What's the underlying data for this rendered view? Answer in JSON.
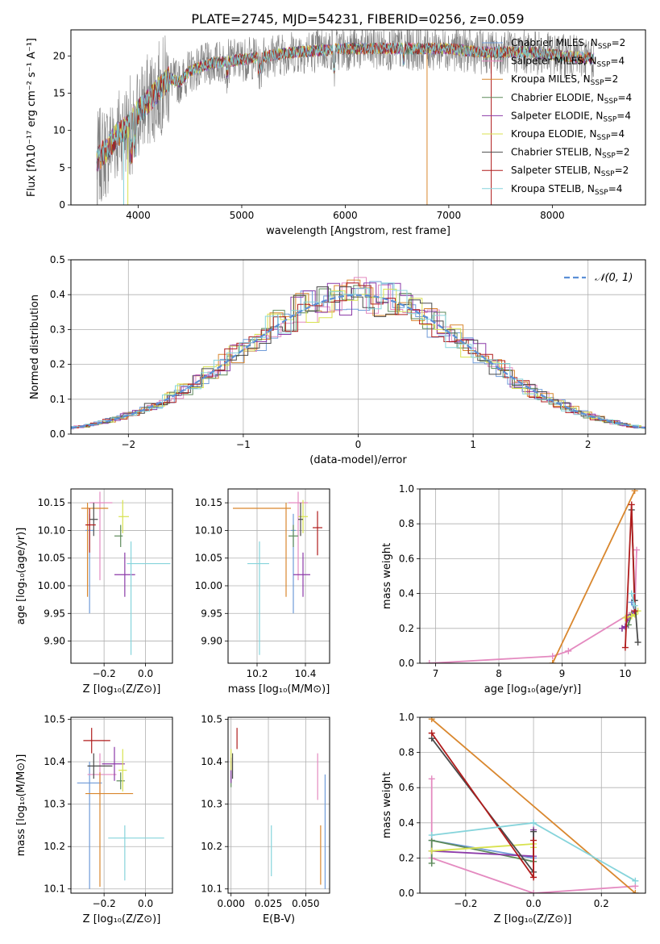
{
  "figure": {
    "title": "PLATE=2745, MJD=54231, FIBERID=0256, z=0.059"
  },
  "legend_colors": [
    "#6f9bd8",
    "#e48ac0",
    "#d9872e",
    "#5d8a5a",
    "#8b3aa8",
    "#d8e24f",
    "#4a4a4a",
    "#b01c1c",
    "#86d4db"
  ],
  "chart_data": [
    {
      "id": "spectrum",
      "type": "line",
      "xlabel": "wavelength [Angstrom, rest frame]",
      "ylabel": "Flux [fλ10⁻¹⁷ erg cm⁻² s⁻¹ A⁻¹]",
      "xlim": [
        3350,
        8900
      ],
      "ylim": [
        0,
        23.5
      ],
      "xticks": [
        4000,
        5000,
        6000,
        7000,
        8000
      ],
      "yticks": [
        0,
        5,
        10,
        15,
        20
      ],
      "legend_position": "right",
      "continuum": {
        "x": [
          3600,
          3700,
          3800,
          3900,
          4000,
          4100,
          4200,
          4300,
          4400,
          4500,
          4700,
          5000,
          5500,
          6000,
          6500,
          7000,
          7300,
          7500,
          7800,
          8100,
          8500
        ],
        "y": [
          6,
          7.5,
          9.5,
          10.5,
          12.5,
          14,
          15.5,
          17,
          16.5,
          18,
          19,
          19.5,
          20.5,
          21,
          21,
          21,
          20.5,
          20.5,
          20.5,
          20,
          19.5
        ]
      },
      "series": [
        {
          "name": "Chabrier MILES, N_SSP=2"
        },
        {
          "name": "Salpeter MILES, N_SSP=4"
        },
        {
          "name": "Kroupa MILES, N_SSP=2"
        },
        {
          "name": "Chabrier ELODIE, N_SSP=4"
        },
        {
          "name": "Salpeter ELODIE, N_SSP=4"
        },
        {
          "name": "Kroupa ELODIE, N_SSP=4"
        },
        {
          "name": "Chabrier STELIB, N_SSP=2"
        },
        {
          "name": "Salpeter STELIB, N_SSP=2"
        },
        {
          "name": "Kroupa STELIB, N_SSP=4"
        }
      ]
    },
    {
      "id": "residuals",
      "type": "histogram",
      "xlabel": "(data-model)/error",
      "ylabel": "Normed distribution",
      "xlim": [
        -2.5,
        2.5
      ],
      "ylim": [
        0,
        0.5
      ],
      "xticks": [
        -2,
        -1,
        0,
        1,
        2
      ],
      "yticks": [
        0.0,
        0.1,
        0.2,
        0.3,
        0.4,
        0.5
      ],
      "grid": true,
      "legend": "𝒩(0, 1)",
      "legend_position": "top-right",
      "reference": {
        "name": "N(0,1)",
        "mean": 0,
        "sigma": 1
      }
    },
    {
      "id": "age_vs_Z",
      "type": "errorbar",
      "xlabel": "Z [log₁₀(Z/Z⊙)]",
      "ylabel": "age  [log₁₀(age/yr)]",
      "xlim": [
        -0.36,
        0.13
      ],
      "ylim": [
        9.86,
        10.175
      ],
      "xticks": [
        -0.2,
        0.0
      ],
      "yticks": [
        9.9,
        9.95,
        10.0,
        10.05,
        10.1,
        10.15
      ],
      "grid": true,
      "points": [
        {
          "x": -0.27,
          "xerr": [
            0.02,
            0.02
          ],
          "y": 10.1,
          "yerr": [
            0.15,
            0.03
          ]
        },
        {
          "x": -0.22,
          "xerr": [
            0.05,
            0.06
          ],
          "y": 10.15,
          "yerr": [
            0.14,
            0.02
          ]
        },
        {
          "x": -0.28,
          "xerr": [
            0.03,
            0.1
          ],
          "y": 10.14,
          "yerr": [
            0.16,
            0.01
          ]
        },
        {
          "x": -0.12,
          "xerr": [
            0.03,
            0.01
          ],
          "y": 10.09,
          "yerr": [
            0.02,
            0.02
          ]
        },
        {
          "x": -0.1,
          "xerr": [
            0.05,
            0.05
          ],
          "y": 10.02,
          "yerr": [
            0.04,
            0.04
          ]
        },
        {
          "x": -0.11,
          "xerr": [
            0.02,
            0.03
          ],
          "y": 10.125,
          "yerr": [
            0.03,
            0.03
          ]
        },
        {
          "x": -0.25,
          "xerr": [
            0.02,
            0.02
          ],
          "y": 10.12,
          "yerr": [
            0.03,
            0.03
          ]
        },
        {
          "x": -0.27,
          "xerr": [
            0.02,
            0.03
          ],
          "y": 10.11,
          "yerr": [
            0.05,
            0.03
          ]
        },
        {
          "x": -0.07,
          "xerr": [
            0.02,
            0.19
          ],
          "y": 10.04,
          "yerr": [
            0.165,
            0.04
          ]
        }
      ]
    },
    {
      "id": "age_vs_mass",
      "type": "errorbar",
      "xlabel": "mass [log₁₀(M/M⊙)]",
      "ylabel": "",
      "xlim": [
        10.08,
        10.5
      ],
      "ylim": [
        9.86,
        10.175
      ],
      "xticks": [
        10.2,
        10.4
      ],
      "yticks": [
        9.9,
        9.95,
        10.0,
        10.05,
        10.1,
        10.15
      ],
      "grid": true,
      "points": [
        {
          "x": 10.35,
          "xerr": [
            0.01,
            0.01
          ],
          "y": 10.1,
          "yerr": [
            0.15,
            0.03
          ]
        },
        {
          "x": 10.37,
          "xerr": [
            0.04,
            0.04
          ],
          "y": 10.15,
          "yerr": [
            0.14,
            0.02
          ]
        },
        {
          "x": 10.32,
          "xerr": [
            0.22,
            0.02
          ],
          "y": 10.14,
          "yerr": [
            0.16,
            0.01
          ]
        },
        {
          "x": 10.35,
          "xerr": [
            0.02,
            0.02
          ],
          "y": 10.09,
          "yerr": [
            0.02,
            0.02
          ]
        },
        {
          "x": 10.39,
          "xerr": [
            0.04,
            0.03
          ],
          "y": 10.02,
          "yerr": [
            0.04,
            0.04
          ]
        },
        {
          "x": 10.39,
          "xerr": [
            0.02,
            0.02
          ],
          "y": 10.125,
          "yerr": [
            0.03,
            0.03
          ]
        },
        {
          "x": 10.38,
          "xerr": [
            0.01,
            0.01
          ],
          "y": 10.12,
          "yerr": [
            0.03,
            0.03
          ]
        },
        {
          "x": 10.45,
          "xerr": [
            0.02,
            0.02
          ],
          "y": 10.105,
          "yerr": [
            0.05,
            0.03
          ]
        },
        {
          "x": 10.21,
          "xerr": [
            0.05,
            0.04
          ],
          "y": 10.04,
          "yerr": [
            0.165,
            0.04
          ]
        }
      ]
    },
    {
      "id": "weight_vs_age",
      "type": "line",
      "xlabel": "age  [log₁₀(age/yr)]",
      "ylabel": "mass weight",
      "xlim": [
        6.75,
        10.32
      ],
      "ylim": [
        0,
        1.0
      ],
      "xticks": [
        7,
        8,
        9,
        10
      ],
      "yticks": [
        0.0,
        0.2,
        0.4,
        0.6,
        0.8,
        1.0
      ],
      "grid": true,
      "series": [
        {
          "x": [
            10.1,
            10.15
          ],
          "y": [
            0.35,
            0.3
          ]
        },
        {
          "x": [
            6.9,
            8.85,
            9.1,
            10.1,
            10.15,
            10.18
          ],
          "y": [
            0.0,
            0.04,
            0.07,
            0.29,
            0.3,
            0.65
          ]
        },
        {
          "x": [
            8.85,
            10.15
          ],
          "y": [
            0.0,
            0.99
          ]
        },
        {
          "x": [
            9.95,
            10.05,
            10.1,
            10.15
          ],
          "y": [
            0.2,
            0.22,
            0.28,
            0.3
          ]
        },
        {
          "x": [
            9.95,
            10.0,
            10.05,
            10.15
          ],
          "y": [
            0.2,
            0.21,
            0.26,
            0.3
          ]
        },
        {
          "x": [
            10.0,
            10.1,
            10.15,
            10.2
          ],
          "y": [
            0.26,
            0.27,
            0.28,
            0.3
          ]
        },
        {
          "x": [
            10.1,
            10.15,
            10.2
          ],
          "y": [
            0.88,
            0.36,
            0.12
          ]
        },
        {
          "x": [
            10.0,
            10.1,
            10.15
          ],
          "y": [
            0.09,
            0.91,
            0.3
          ]
        },
        {
          "x": [
            10.1,
            10.15
          ],
          "y": [
            0.4,
            0.33
          ]
        }
      ]
    },
    {
      "id": "mass_vs_Z",
      "type": "errorbar",
      "xlabel": "Z [log₁₀(Z/Z⊙)]",
      "ylabel": "mass [log₁₀(M/M⊙)]",
      "xlim": [
        -0.36,
        0.13
      ],
      "ylim": [
        10.09,
        10.505
      ],
      "xticks": [
        -0.2,
        0.0
      ],
      "yticks": [
        10.1,
        10.2,
        10.3,
        10.4,
        10.5
      ],
      "grid": true,
      "points": [
        {
          "x": -0.27,
          "xerr": [
            0.06,
            0.06
          ],
          "y": 10.35,
          "yerr": [
            0.25,
            0.05
          ]
        },
        {
          "x": -0.22,
          "xerr": [
            0.06,
            0.08
          ],
          "y": 10.37,
          "yerr": [
            0.05,
            0.05
          ]
        },
        {
          "x": -0.22,
          "xerr": [
            0.07,
            0.16
          ],
          "y": 10.325,
          "yerr": [
            0.22,
            0.05
          ]
        },
        {
          "x": -0.12,
          "xerr": [
            0.02,
            0.02
          ],
          "y": 10.355,
          "yerr": [
            0.02,
            0.02
          ]
        },
        {
          "x": -0.15,
          "xerr": [
            0.06,
            0.05
          ],
          "y": 10.395,
          "yerr": [
            0.04,
            0.04
          ]
        },
        {
          "x": -0.11,
          "xerr": [
            0.02,
            0.02
          ],
          "y": 10.38,
          "yerr": [
            0.05,
            0.05
          ]
        },
        {
          "x": -0.25,
          "xerr": [
            0.03,
            0.09
          ],
          "y": 10.39,
          "yerr": [
            0.03,
            0.03
          ]
        },
        {
          "x": -0.26,
          "xerr": [
            0.04,
            0.09
          ],
          "y": 10.45,
          "yerr": [
            0.03,
            0.03
          ]
        },
        {
          "x": -0.1,
          "xerr": [
            0.08,
            0.19
          ],
          "y": 10.22,
          "yerr": [
            0.1,
            0.03
          ]
        }
      ]
    },
    {
      "id": "mass_vs_ebv",
      "type": "errorbar",
      "xlabel": "E(B-V)",
      "ylabel": "",
      "xlim": [
        -0.002,
        0.066
      ],
      "ylim": [
        10.09,
        10.505
      ],
      "xticks": [
        0.0,
        0.025,
        0.05
      ],
      "yticks": [
        10.1,
        10.2,
        10.3,
        10.4,
        10.5
      ],
      "grid": true,
      "points": [
        {
          "x": 0.063,
          "xerr": [
            0,
            0
          ],
          "y": 10.35,
          "yerr": [
            0.25,
            0.02
          ]
        },
        {
          "x": 0.058,
          "xerr": [
            0,
            0
          ],
          "y": 10.37,
          "yerr": [
            0.06,
            0.05
          ]
        },
        {
          "x": 0.06,
          "xerr": [
            0,
            0
          ],
          "y": 10.2,
          "yerr": [
            0.09,
            0.05
          ]
        },
        {
          "x": 0.0,
          "xerr": [
            0,
            0
          ],
          "y": 10.37,
          "yerr": [
            0.03,
            0.03
          ]
        },
        {
          "x": 0.0,
          "xerr": [
            0,
            0
          ],
          "y": 10.39,
          "yerr": [
            0.04,
            0.02
          ]
        },
        {
          "x": 0.0,
          "xerr": [
            0,
            0
          ],
          "y": 10.4,
          "yerr": [
            0.02,
            0.03
          ]
        },
        {
          "x": 0.001,
          "xerr": [
            0,
            0
          ],
          "y": 10.39,
          "yerr": [
            0.03,
            0.03
          ]
        },
        {
          "x": 0.004,
          "xerr": [
            0,
            0
          ],
          "y": 10.45,
          "yerr": [
            0.02,
            0.03
          ]
        },
        {
          "x": 0.027,
          "xerr": [
            0,
            0
          ],
          "y": 10.19,
          "yerr": [
            0.06,
            0.06
          ]
        }
      ]
    },
    {
      "id": "weight_vs_Z",
      "type": "line",
      "xlabel": "Z [log₁₀(Z/Z⊙)]",
      "ylabel": "mass weight",
      "xlim": [
        -0.335,
        0.33
      ],
      "ylim": [
        0,
        1.0
      ],
      "xticks": [
        -0.2,
        0.0,
        0.2
      ],
      "yticks": [
        0.0,
        0.2,
        0.4,
        0.6,
        0.8,
        1.0
      ],
      "grid": true,
      "series": [
        {
          "x": [
            -0.3,
            0.0
          ],
          "y": [
            0.3,
            0.2
          ]
        },
        {
          "x": [
            -0.3,
            -0.3,
            0.0,
            0.3
          ],
          "y": [
            0.65,
            0.2,
            0.0,
            0.04
          ]
        },
        {
          "x": [
            -0.3,
            0.3
          ],
          "y": [
            0.99,
            0.0
          ]
        },
        {
          "x": [
            -0.3,
            -0.3,
            0.0
          ],
          "y": [
            0.17,
            0.3,
            0.18
          ]
        },
        {
          "x": [
            -0.3,
            0.0,
            0.0
          ],
          "y": [
            0.24,
            0.21,
            0.36
          ]
        },
        {
          "x": [
            -0.3,
            0.0,
            0.0
          ],
          "y": [
            0.24,
            0.28,
            0.26
          ]
        },
        {
          "x": [
            -0.3,
            0.0,
            0.0
          ],
          "y": [
            0.88,
            0.12,
            0.35
          ]
        },
        {
          "x": [
            -0.3,
            0.0,
            0.0
          ],
          "y": [
            0.91,
            0.09,
            0.3
          ]
        },
        {
          "x": [
            -0.3,
            0.0,
            0.3
          ],
          "y": [
            0.33,
            0.4,
            0.07
          ]
        }
      ]
    }
  ]
}
